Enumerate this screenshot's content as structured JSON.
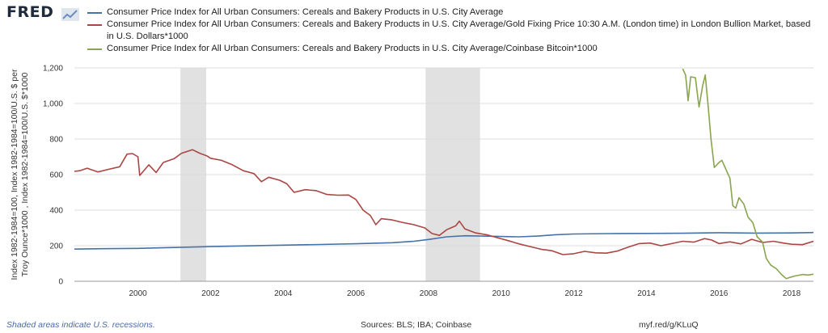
{
  "logo": {
    "text": "FRED",
    "icon": "fred-chart-icon"
  },
  "footer": {
    "recessions_note": "Shaded areas indicate U.S. recessions.",
    "sources": "Sources: BLS; IBA; Coinbase",
    "short_url": "myf.red/g/KLuQ"
  },
  "chart_data": {
    "type": "line",
    "title": "",
    "ylabel": "Index 1982-1984=100, Index 1982-1984=100/U.S. $ per Troy Ounce*1000 , Index 1982-1984=100/U.S. $*1000",
    "xlabel": "",
    "xlim": [
      1998.25,
      2018.6
    ],
    "ylim": [
      0,
      1200
    ],
    "x_ticks": [
      2000,
      2002,
      2004,
      2006,
      2008,
      2010,
      2012,
      2014,
      2016,
      2018
    ],
    "y_ticks": [
      0,
      200,
      400,
      600,
      800,
      1000,
      1200
    ],
    "y_tick_labels": [
      "0",
      "200",
      "400",
      "600",
      "800",
      "1,000",
      "1,200"
    ],
    "grid": "horizontal",
    "legend_position": "top",
    "recessions": [
      [
        2001.17,
        2001.88
      ],
      [
        2007.92,
        2009.42
      ]
    ],
    "series": [
      {
        "name": "Consumer Price Index for All Urban Consumers: Cereals and Bakery Products in U.S. City Average",
        "color": "#4572a7",
        "points": [
          [
            1998.25,
            181
          ],
          [
            1999,
            183
          ],
          [
            2000,
            185
          ],
          [
            2001,
            190
          ],
          [
            2002,
            195
          ],
          [
            2003,
            199
          ],
          [
            2004,
            203
          ],
          [
            2005,
            207
          ],
          [
            2006,
            211
          ],
          [
            2007,
            217
          ],
          [
            2007.6,
            225
          ],
          [
            2008,
            235
          ],
          [
            2008.5,
            250
          ],
          [
            2009,
            256
          ],
          [
            2009.5,
            254
          ],
          [
            2010,
            252
          ],
          [
            2010.5,
            250
          ],
          [
            2011,
            254
          ],
          [
            2011.5,
            262
          ],
          [
            2012,
            266
          ],
          [
            2013,
            268
          ],
          [
            2014,
            269
          ],
          [
            2015,
            270
          ],
          [
            2016,
            273
          ],
          [
            2017,
            271
          ],
          [
            2018,
            272
          ],
          [
            2018.6,
            274
          ]
        ]
      },
      {
        "name": "Consumer Price Index for All Urban Consumers: Cereals and Bakery Products in U.S. City Average/Gold Fixing Price 10:30 A.M. (London time) in London Bullion Market, based in U.S. Dollars*1000",
        "color": "#aa4643",
        "points": [
          [
            1998.25,
            618
          ],
          [
            1998.4,
            622
          ],
          [
            1998.6,
            636
          ],
          [
            1998.9,
            615
          ],
          [
            1999.2,
            630
          ],
          [
            1999.5,
            644
          ],
          [
            1999.7,
            715
          ],
          [
            1999.85,
            718
          ],
          [
            2000,
            700
          ],
          [
            2000.05,
            595
          ],
          [
            2000.3,
            655
          ],
          [
            2000.5,
            612
          ],
          [
            2000.7,
            668
          ],
          [
            2001,
            690
          ],
          [
            2001.2,
            720
          ],
          [
            2001.5,
            740
          ],
          [
            2001.7,
            720
          ],
          [
            2001.9,
            705
          ],
          [
            2002,
            692
          ],
          [
            2002.3,
            680
          ],
          [
            2002.6,
            655
          ],
          [
            2002.9,
            622
          ],
          [
            2003.2,
            605
          ],
          [
            2003.4,
            560
          ],
          [
            2003.6,
            585
          ],
          [
            2003.9,
            568
          ],
          [
            2004.1,
            548
          ],
          [
            2004.3,
            500
          ],
          [
            2004.6,
            515
          ],
          [
            2004.9,
            510
          ],
          [
            2005.2,
            488
          ],
          [
            2005.5,
            484
          ],
          [
            2005.8,
            485
          ],
          [
            2006,
            460
          ],
          [
            2006.2,
            400
          ],
          [
            2006.4,
            370
          ],
          [
            2006.55,
            318
          ],
          [
            2006.7,
            352
          ],
          [
            2007,
            345
          ],
          [
            2007.3,
            330
          ],
          [
            2007.6,
            318
          ],
          [
            2007.9,
            300
          ],
          [
            2008.1,
            268
          ],
          [
            2008.3,
            258
          ],
          [
            2008.5,
            290
          ],
          [
            2008.75,
            312
          ],
          [
            2008.85,
            338
          ],
          [
            2009,
            295
          ],
          [
            2009.3,
            272
          ],
          [
            2009.6,
            262
          ],
          [
            2009.9,
            245
          ],
          [
            2010.2,
            228
          ],
          [
            2010.5,
            210
          ],
          [
            2010.8,
            195
          ],
          [
            2011.1,
            180
          ],
          [
            2011.4,
            172
          ],
          [
            2011.7,
            150
          ],
          [
            2012,
            155
          ],
          [
            2012.3,
            168
          ],
          [
            2012.6,
            160
          ],
          [
            2012.9,
            158
          ],
          [
            2013.2,
            170
          ],
          [
            2013.5,
            192
          ],
          [
            2013.8,
            212
          ],
          [
            2014.1,
            215
          ],
          [
            2014.4,
            200
          ],
          [
            2014.7,
            212
          ],
          [
            2015,
            225
          ],
          [
            2015.3,
            220
          ],
          [
            2015.6,
            240
          ],
          [
            2015.8,
            232
          ],
          [
            2016,
            212
          ],
          [
            2016.3,
            222
          ],
          [
            2016.6,
            210
          ],
          [
            2016.9,
            236
          ],
          [
            2017.2,
            218
          ],
          [
            2017.5,
            225
          ],
          [
            2017.8,
            214
          ],
          [
            2018,
            208
          ],
          [
            2018.3,
            206
          ],
          [
            2018.6,
            225
          ]
        ]
      },
      {
        "name": "Consumer Price Index for All Urban Consumers: Cereals and Bakery Products in U.S. City Average/Coinbase Bitcoin*1000",
        "color": "#89a54e",
        "points": [
          [
            2015.0,
            1195
          ],
          [
            2015.08,
            1160
          ],
          [
            2015.15,
            1015
          ],
          [
            2015.22,
            1150
          ],
          [
            2015.35,
            1145
          ],
          [
            2015.45,
            980
          ],
          [
            2015.55,
            1100
          ],
          [
            2015.62,
            1160
          ],
          [
            2015.7,
            990
          ],
          [
            2015.78,
            800
          ],
          [
            2015.87,
            640
          ],
          [
            2016.0,
            668
          ],
          [
            2016.08,
            680
          ],
          [
            2016.2,
            625
          ],
          [
            2016.3,
            580
          ],
          [
            2016.38,
            425
          ],
          [
            2016.46,
            412
          ],
          [
            2016.55,
            470
          ],
          [
            2016.68,
            435
          ],
          [
            2016.8,
            360
          ],
          [
            2016.93,
            330
          ],
          [
            2017.05,
            250
          ],
          [
            2017.2,
            220
          ],
          [
            2017.3,
            130
          ],
          [
            2017.42,
            92
          ],
          [
            2017.58,
            70
          ],
          [
            2017.72,
            38
          ],
          [
            2017.85,
            15
          ],
          [
            2017.95,
            22
          ],
          [
            2018.1,
            30
          ],
          [
            2018.3,
            38
          ],
          [
            2018.45,
            35
          ],
          [
            2018.6,
            40
          ]
        ]
      }
    ]
  }
}
